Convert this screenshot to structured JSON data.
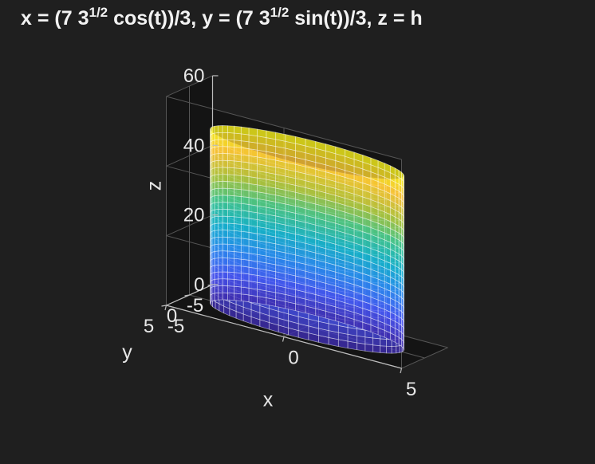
{
  "chart_data": {
    "type": "surface",
    "title": {
      "p1": "x = (7 3",
      "sup1": "1/2",
      "p2": " cos(t))/3, y = (7 3",
      "sup2": "1/2",
      "p3": " sin(t))/3, z = h"
    },
    "surface": {
      "shape": "cylinder",
      "radius": 4.0415,
      "center": [
        0,
        0
      ],
      "z_range": [
        0,
        50
      ],
      "colormap": "parula",
      "edge_color": "#ffffff"
    },
    "axes": {
      "xlabel": "x",
      "ylabel": "y",
      "zlabel": "z",
      "xlim": [
        -5,
        5
      ],
      "ylim": [
        -5,
        5
      ],
      "zlim": [
        0,
        60
      ],
      "xticks": [
        -5,
        0,
        5
      ],
      "yticks": [
        -5,
        0,
        5
      ],
      "zticks": [
        0,
        20,
        40,
        60
      ],
      "xtick_labels": [
        "-5",
        "0",
        "5"
      ],
      "ytick_labels": [
        "-5",
        "0",
        "5"
      ],
      "ztick_labels": [
        "0",
        "20",
        "40",
        "60"
      ],
      "grid": true,
      "box": true
    },
    "theme": {
      "background": "#1f1f1f",
      "axes_background": "#141414",
      "grid_color": "#555555",
      "text_color": "#e8e8e8"
    }
  }
}
